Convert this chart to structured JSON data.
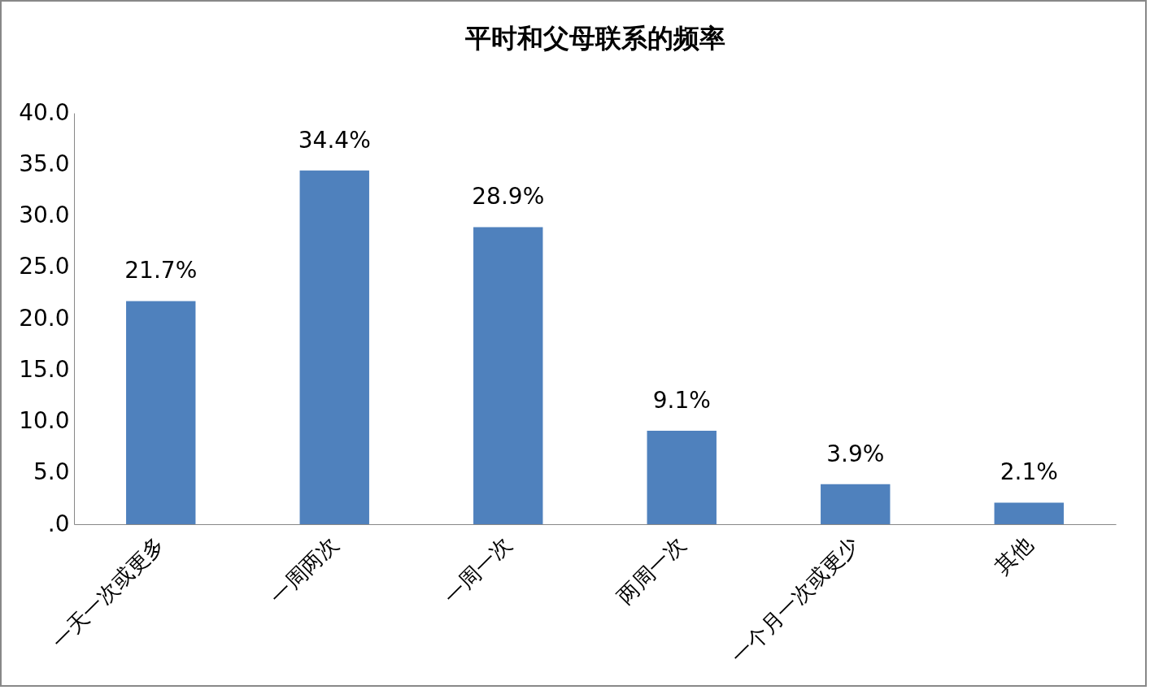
{
  "chart_data": {
    "type": "bar",
    "title": "平时和父母联系的频率",
    "categories": [
      "一天一次或更多",
      "一周两次",
      "一周一次",
      "两周一次",
      "一个月一次或更少",
      "其他"
    ],
    "values": [
      21.7,
      34.4,
      28.9,
      9.1,
      3.9,
      2.1
    ],
    "value_labels": [
      "21.7%",
      "34.4%",
      "28.9%",
      "9.1%",
      "3.9%",
      "2.1%"
    ],
    "color": "#4f81bd",
    "ylim": [
      0,
      40
    ],
    "yticks": [
      {
        "value": 0,
        "label": ".0"
      },
      {
        "value": 5,
        "label": "5.0"
      },
      {
        "value": 10,
        "label": "10.0"
      },
      {
        "value": 15,
        "label": "15.0"
      },
      {
        "value": 20,
        "label": "20.0"
      },
      {
        "value": 25,
        "label": "25.0"
      },
      {
        "value": 30,
        "label": "30.0"
      },
      {
        "value": 35,
        "label": "35.0"
      },
      {
        "value": 40,
        "label": "40.0"
      }
    ],
    "grid": false
  }
}
